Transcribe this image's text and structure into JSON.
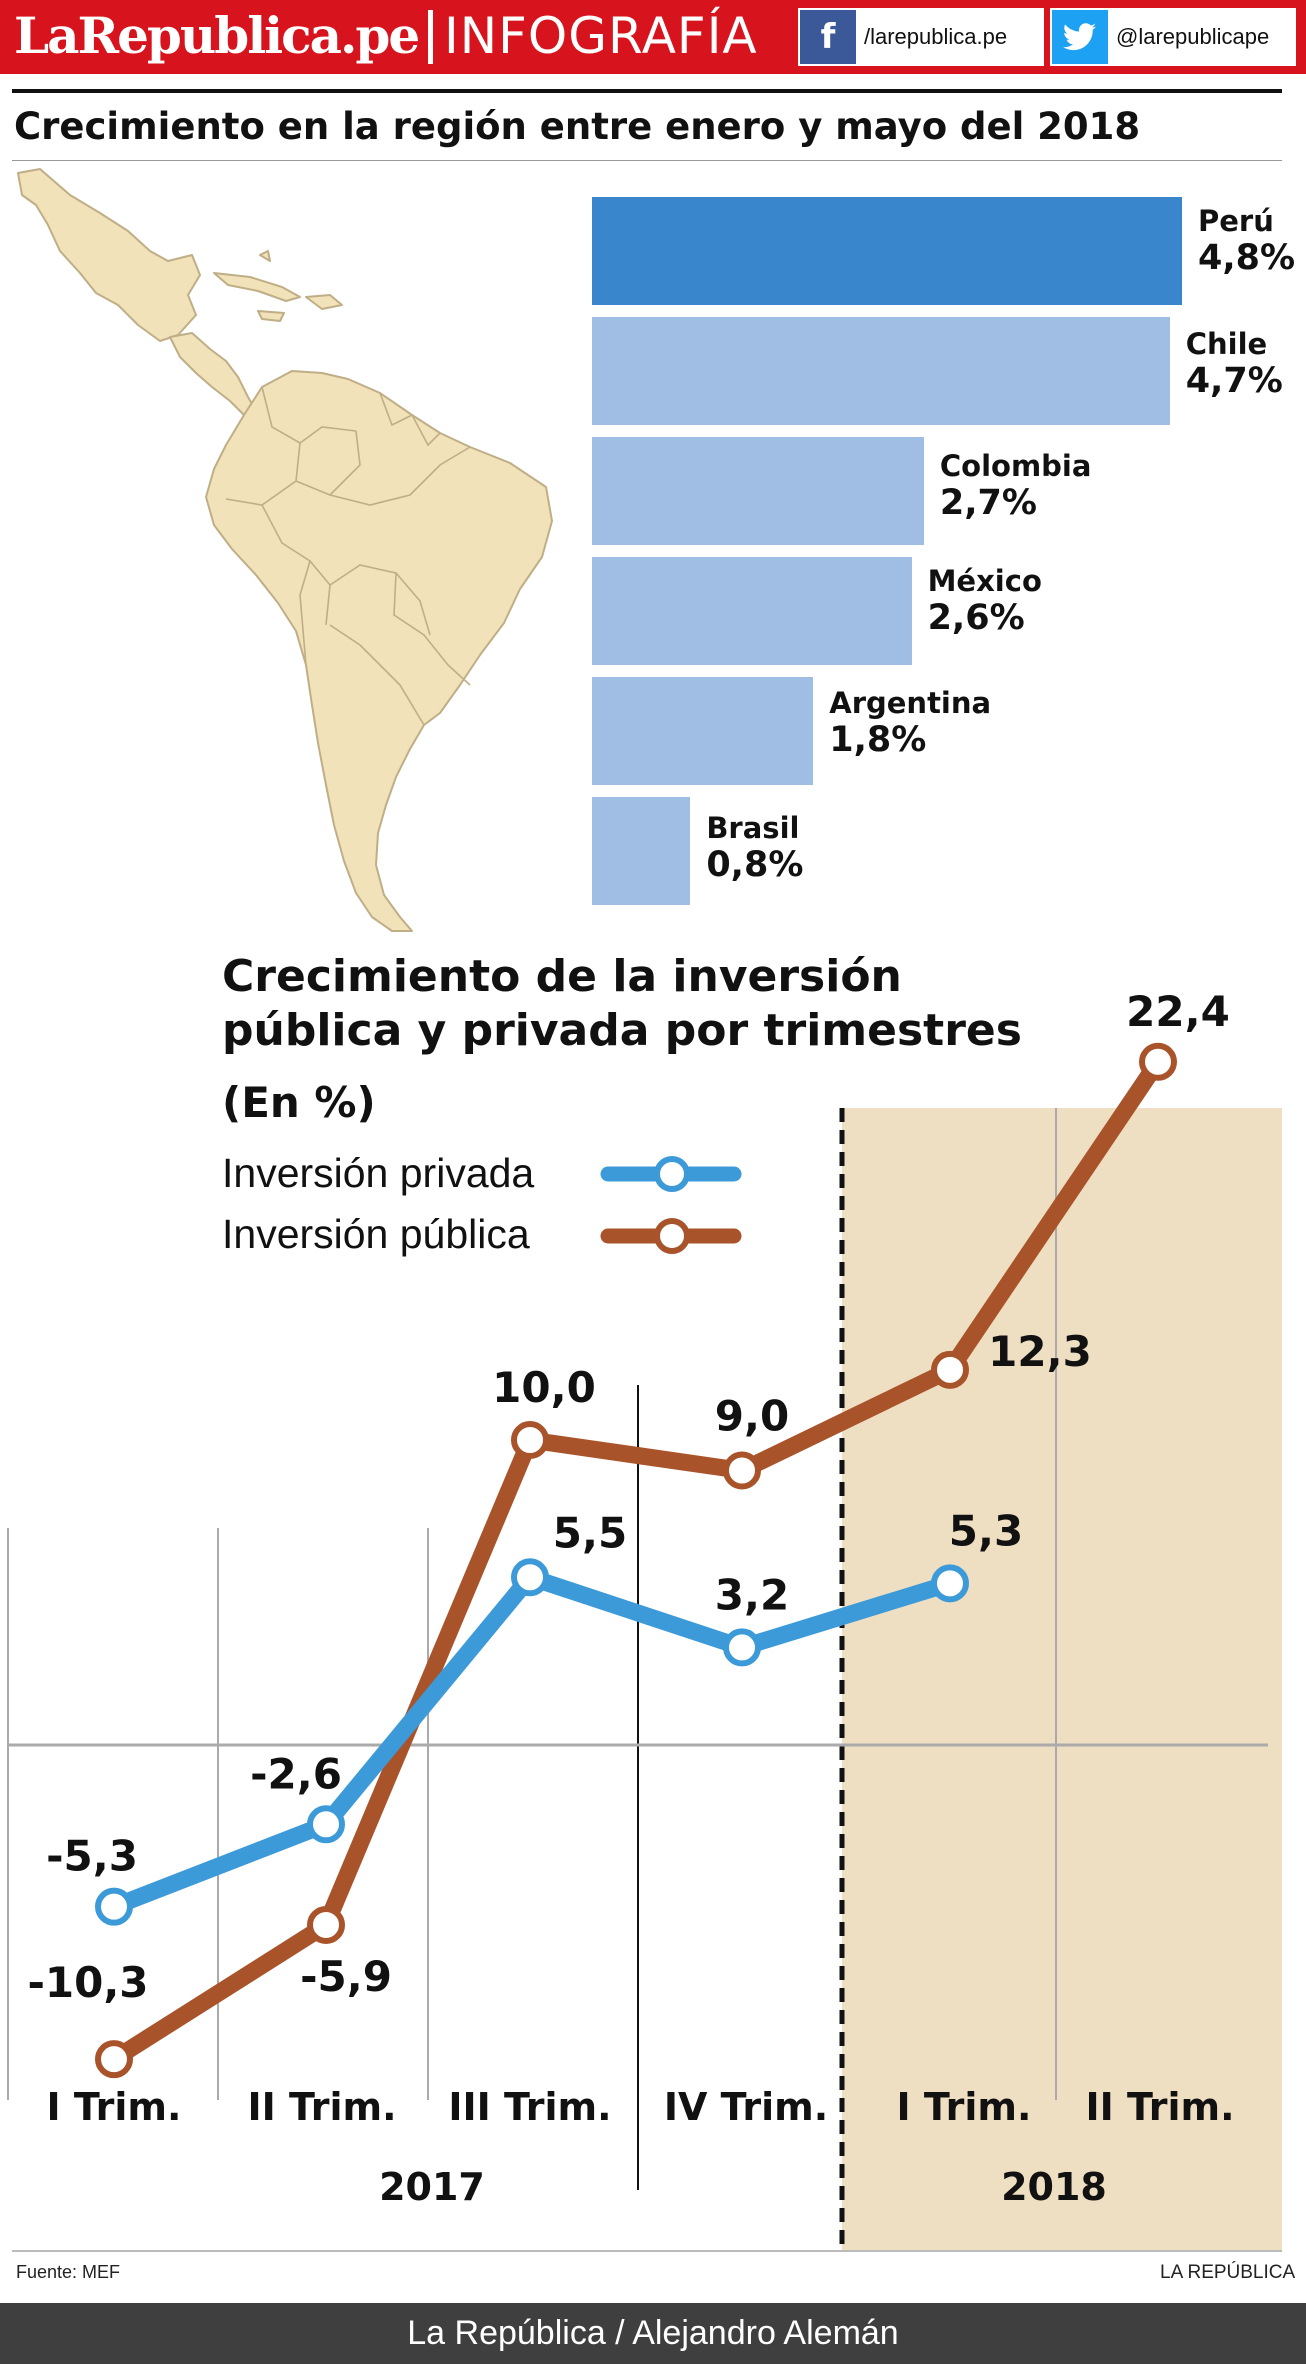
{
  "header": {
    "brand": "LaRepublica.pe",
    "section": "INFOGRAFÍA",
    "facebook_icon": "facebook-icon",
    "facebook_handle": "/larepublica.pe",
    "twitter_icon": "twitter-icon",
    "twitter_handle": "@larepublicape"
  },
  "colors": {
    "header_red": "#d7141d",
    "bar_highlight": "#3a86cc",
    "bar_normal": "#a0bde3",
    "privada": "#3d9ad9",
    "publica": "#a9532a",
    "shade_2018": "#eedfc3",
    "map_land": "#f1e2b9"
  },
  "chart_data": [
    {
      "type": "bar",
      "orientation": "horizontal",
      "title": "Crecimiento en la región entre enero y mayo del 2018",
      "categories": [
        "Perú",
        "Chile",
        "Colombia",
        "México",
        "Argentina",
        "Brasil"
      ],
      "values": [
        4.8,
        4.7,
        2.7,
        2.6,
        1.8,
        0.8
      ],
      "value_labels": [
        "4,8%",
        "4,7%",
        "2,7%",
        "2,6%",
        "1,8%",
        "0,8%"
      ],
      "highlight": "Perú",
      "unit": "%"
    },
    {
      "type": "line",
      "title": "Crecimiento de la inversión pública y privada por trimestres",
      "subtitle": "(En %)",
      "categories": [
        "I Trim.",
        "II Trim.",
        "III Trim.",
        "IV Trim.",
        "I Trim.",
        "II Trim."
      ],
      "years": [
        {
          "label": "2017",
          "quarters": 4
        },
        {
          "label": "2018",
          "quarters": 2
        }
      ],
      "ylim": [
        -12,
        25
      ],
      "zero_line": true,
      "legend": "top-left",
      "series": [
        {
          "name": "Inversión privada",
          "values": [
            -5.3,
            -2.6,
            5.5,
            3.2,
            5.3,
            null
          ],
          "labels": [
            "-5,3",
            "-2,6",
            "5,5",
            "3,2",
            "5,3",
            ""
          ]
        },
        {
          "name": "Inversión pública",
          "values": [
            -10.3,
            -5.9,
            10.0,
            9.0,
            12.3,
            22.4
          ],
          "labels": [
            "-10,3",
            "-5,9",
            "10,0",
            "9,0",
            "12,3",
            "22,4"
          ]
        }
      ]
    }
  ],
  "footer": {
    "source": "Fuente: MEF",
    "brand": "LA REPÚBLICA",
    "credit": "La República / Alejandro Alemán"
  }
}
